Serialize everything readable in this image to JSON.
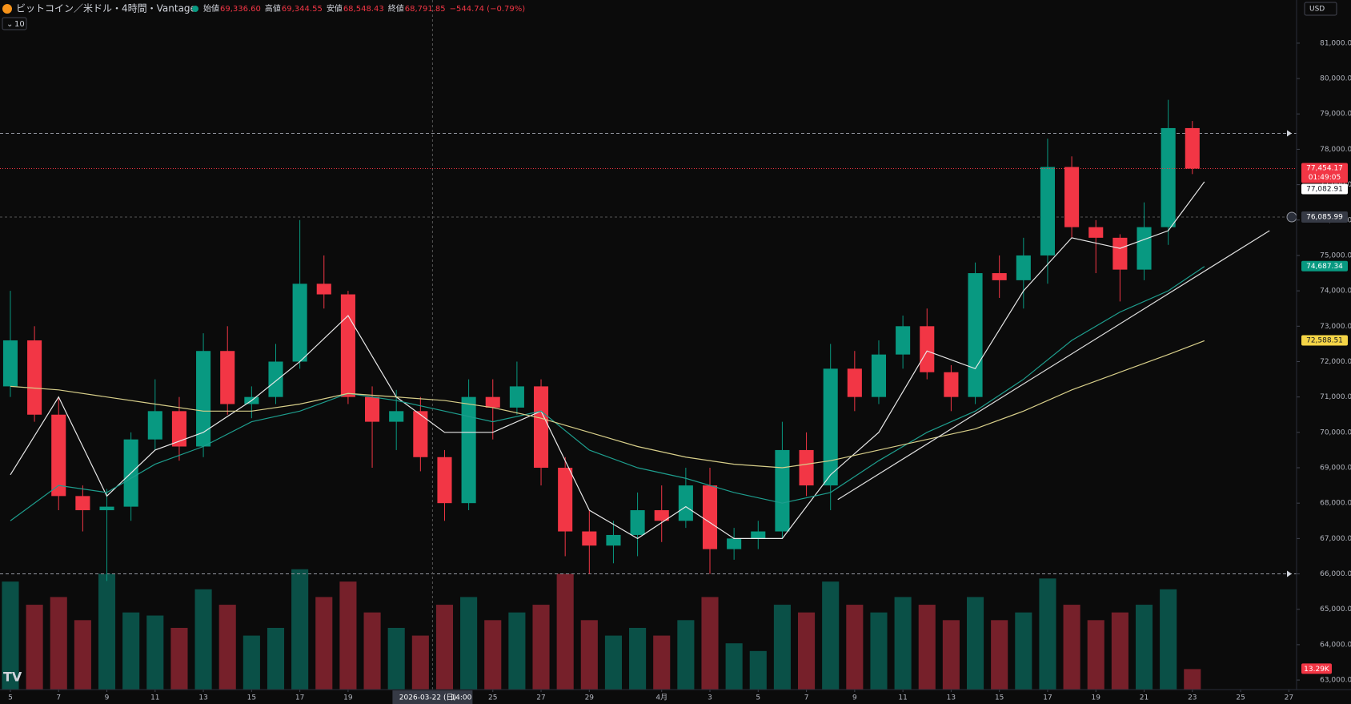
{
  "chart_data": {
    "type": "candlestick",
    "header": {
      "symbol": "ビットコイン／米ドル・4時間・Vantage",
      "fields": [
        {
          "name": "始値",
          "value": "69,336.60"
        },
        {
          "name": "高値",
          "value": "69,344.55"
        },
        {
          "name": "安値",
          "value": "68,548.43"
        },
        {
          "name": "終値",
          "value": "68,791.85"
        }
      ],
      "change": "−544.74 (−0.79%)",
      "indicator_count": "10",
      "currency": "USD"
    },
    "up_color": "#089981",
    "down_color": "#f23645",
    "x": [
      0,
      1,
      2,
      3,
      4,
      5,
      6,
      7,
      8,
      9,
      10,
      11,
      12,
      13,
      14,
      15,
      16,
      17,
      18,
      19,
      20,
      21,
      22,
      23,
      24,
      25,
      26,
      27,
      28,
      29,
      30,
      31,
      32,
      33,
      34,
      35,
      36,
      37,
      38,
      39,
      40,
      41,
      42,
      43,
      44,
      45,
      46,
      47,
      48,
      49
    ],
    "open": [
      71300,
      72600,
      70500,
      68200,
      67800,
      67900,
      69800,
      70600,
      69600,
      72300,
      70800,
      71000,
      72000,
      74200,
      73900,
      71000,
      70300,
      70600,
      69300,
      68000,
      71000,
      70700,
      71300,
      69000,
      67200,
      66800,
      67100,
      67800,
      67500,
      68500,
      66700,
      67000,
      67200,
      69500,
      68500,
      71800,
      71000,
      72200,
      73000,
      71700,
      71000,
      74500,
      74300,
      75000,
      77500,
      75800,
      75500,
      74600,
      75800,
      78600
    ],
    "high": [
      74000,
      73000,
      71000,
      68500,
      68400,
      70000,
      71500,
      71000,
      72800,
      73000,
      71300,
      72500,
      76000,
      75000,
      74000,
      71300,
      71200,
      71000,
      69500,
      71500,
      71500,
      72000,
      71500,
      69300,
      67800,
      67500,
      68300,
      68500,
      69000,
      69000,
      67300,
      67500,
      70300,
      70000,
      72500,
      72300,
      72600,
      73300,
      73500,
      71900,
      74800,
      75000,
      75500,
      78300,
      77800,
      76000,
      75600,
      76500,
      79400,
      78800
    ],
    "low": [
      71000,
      70300,
      67800,
      67200,
      65800,
      67500,
      69500,
      69200,
      69300,
      70500,
      70400,
      70800,
      71800,
      73500,
      70800,
      69000,
      69500,
      68900,
      67500,
      67800,
      69800,
      70500,
      68500,
      66500,
      66000,
      66300,
      66500,
      66900,
      67300,
      66000,
      66400,
      66700,
      67000,
      68200,
      67800,
      70600,
      70800,
      71800,
      71500,
      70600,
      70800,
      73800,
      73500,
      74200,
      75500,
      74500,
      73700,
      74300,
      75300,
      77300
    ],
    "close": [
      72600,
      70500,
      68200,
      67800,
      67900,
      69800,
      70600,
      69600,
      72300,
      70800,
      71000,
      72000,
      74200,
      73900,
      71000,
      70300,
      70600,
      69300,
      68000,
      71000,
      70700,
      71300,
      69000,
      67200,
      66800,
      67100,
      67800,
      67500,
      68500,
      66700,
      67000,
      67200,
      69500,
      68500,
      71800,
      71000,
      72200,
      73000,
      71700,
      71000,
      74500,
      74300,
      75000,
      77500,
      75800,
      75500,
      74600,
      75800,
      78600,
      77454.17
    ],
    "volume": [
      70,
      55,
      60,
      45,
      75,
      50,
      48,
      40,
      65,
      55,
      35,
      40,
      78,
      60,
      70,
      50,
      40,
      35,
      55,
      60,
      45,
      50,
      55,
      75,
      45,
      35,
      40,
      35,
      45,
      60,
      30,
      25,
      55,
      50,
      70,
      55,
      50,
      60,
      55,
      45,
      60,
      45,
      50,
      72,
      55,
      45,
      50,
      55,
      65,
      13.29
    ],
    "volume_lim": [
      0,
      95
    ],
    "volume_label": {
      "value": 13.29,
      "label": "13.29K"
    },
    "series": [
      {
        "color": "#e8e8e8",
        "x": [
          0,
          2,
          4,
          6,
          8,
          10,
          12,
          14,
          16,
          18,
          20,
          22,
          24,
          26,
          28,
          30,
          32,
          34,
          36,
          38,
          40,
          42,
          44,
          46,
          48,
          49.5
        ],
        "values": [
          68800,
          71000,
          68200,
          69500,
          70000,
          70900,
          72000,
          73300,
          71000,
          70000,
          70000,
          70600,
          67800,
          67000,
          67900,
          67000,
          67000,
          68800,
          70000,
          72300,
          71800,
          74000,
          75500,
          75200,
          75700,
          77082.91
        ]
      },
      {
        "color": "#1e9e8e",
        "x": [
          0,
          2,
          4,
          6,
          8,
          10,
          12,
          14,
          16,
          18,
          20,
          22,
          24,
          26,
          28,
          30,
          32,
          34,
          36,
          38,
          40,
          42,
          44,
          46,
          48,
          49.5
        ],
        "values": [
          67500,
          68500,
          68300,
          69100,
          69600,
          70300,
          70600,
          71100,
          70900,
          70600,
          70300,
          70600,
          69500,
          69000,
          68700,
          68300,
          68000,
          68300,
          69200,
          70000,
          70600,
          71500,
          72600,
          73400,
          74000,
          74687.34
        ]
      },
      {
        "color": "#d8cf8a",
        "x": [
          0,
          2,
          4,
          6,
          8,
          10,
          12,
          14,
          16,
          18,
          20,
          22,
          24,
          26,
          28,
          30,
          32,
          34,
          36,
          38,
          40,
          42,
          44,
          46,
          48,
          49.5
        ],
        "values": [
          71300,
          71200,
          71000,
          70800,
          70600,
          70600,
          70800,
          71100,
          71000,
          70900,
          70700,
          70400,
          70000,
          69600,
          69300,
          69100,
          69000,
          69200,
          69500,
          69800,
          70100,
          70600,
          71200,
          71700,
          72200,
          72588.51
        ]
      },
      {
        "color": "#dddddd",
        "x": [
          34.3,
          52.2
        ],
        "values": [
          68100,
          75700
        ]
      }
    ],
    "price_labels": [
      {
        "value": 77454.17,
        "label": "77,454.17",
        "color": "#f23645",
        "countdown": "01:49:05"
      },
      {
        "value": 77082.91,
        "label": "77,082.91",
        "color": "#ffffff"
      },
      {
        "value": 74687.34,
        "label": "74,687.34",
        "color": "#089981"
      },
      {
        "value": 72588.51,
        "label": "72,588.51",
        "color": "#f5d547"
      }
    ],
    "hlines": [
      78450,
      66000
    ],
    "crosshair": {
      "x": 17.5,
      "y": {
        "value": 76085.99,
        "label": "76,085.99"
      },
      "date_label": "2026-03-22 (日)",
      "time_label": "14:00"
    },
    "xlim": [
      -0.43,
      53.32
    ],
    "xticks": [
      {
        "value": 0,
        "label": "5"
      },
      {
        "value": 2,
        "label": "7"
      },
      {
        "value": 4,
        "label": "9"
      },
      {
        "value": 6,
        "label": "11"
      },
      {
        "value": 8,
        "label": "13"
      },
      {
        "value": 10,
        "label": "15"
      },
      {
        "value": 12,
        "label": "17"
      },
      {
        "value": 14,
        "label": "19"
      },
      {
        "value": 20,
        "label": "25"
      },
      {
        "value": 22,
        "label": "27"
      },
      {
        "value": 24,
        "label": "29"
      },
      {
        "value": 27,
        "label": "4月"
      },
      {
        "value": 29,
        "label": "3"
      },
      {
        "value": 31,
        "label": "5"
      },
      {
        "value": 33,
        "label": "7"
      },
      {
        "value": 35,
        "label": "9"
      },
      {
        "value": 37,
        "label": "11"
      },
      {
        "value": 39,
        "label": "13"
      },
      {
        "value": 41,
        "label": "15"
      },
      {
        "value": 43,
        "label": "17"
      },
      {
        "value": 45,
        "label": "19"
      },
      {
        "value": 47,
        "label": "21"
      },
      {
        "value": 49,
        "label": "23"
      },
      {
        "value": 51,
        "label": "25"
      },
      {
        "value": 53,
        "label": "27"
      }
    ],
    "ylim": [
      62730,
      82220
    ],
    "yticks": [
      {
        "value": 63000,
        "label": "63,000.00"
      },
      {
        "value": 64000,
        "label": "64,000.00"
      },
      {
        "value": 65000,
        "label": "65,000.00"
      },
      {
        "value": 66000,
        "label": "66,000.00"
      },
      {
        "value": 67000,
        "label": "67,000.00"
      },
      {
        "value": 68000,
        "label": "68,000.00"
      },
      {
        "value": 69000,
        "label": "69,000.00"
      },
      {
        "value": 70000,
        "label": "70,000.00"
      },
      {
        "value": 71000,
        "label": "71,000.00"
      },
      {
        "value": 72000,
        "label": "72,000.00"
      },
      {
        "value": 73000,
        "label": "73,000.00"
      },
      {
        "value": 74000,
        "label": "74,000.00"
      },
      {
        "value": 75000,
        "label": "75,000.00"
      },
      {
        "value": 76000,
        "label": "76,000.00"
      },
      {
        "value": 77000,
        "label": "77,000.00"
      },
      {
        "value": 78000,
        "label": "78,000.00"
      },
      {
        "value": 79000,
        "label": "79,000.00"
      },
      {
        "value": 80000,
        "label": "80,000.00"
      },
      {
        "value": 81000,
        "label": "81,000.00"
      }
    ]
  }
}
